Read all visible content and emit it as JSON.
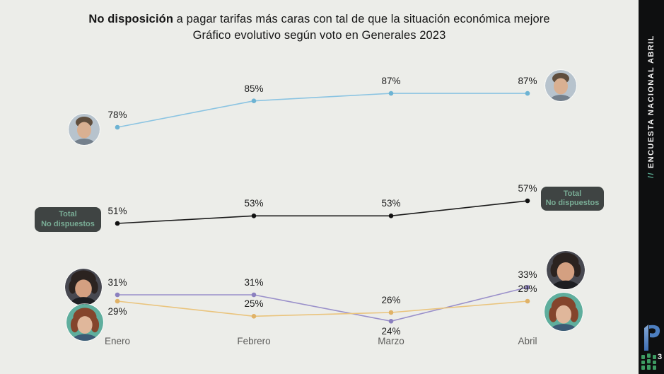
{
  "title": {
    "bold": "No disposición",
    "rest": " a pagar tarifas más caras con tal de que la situación económica mejore",
    "line2": "Gráfico evolutivo según voto en Generales 2023"
  },
  "badges": {
    "bg": "#3f4443",
    "text_color": "#79ac95",
    "left": {
      "line1": "Total",
      "line2": "No dispuestos"
    },
    "right": {
      "line1": "Total",
      "line2": "No dispuestos"
    }
  },
  "avatars": [
    {
      "name": "massa-avatar-left"
    },
    {
      "name": "massa-avatar-right"
    },
    {
      "name": "milei-avatar-left"
    },
    {
      "name": "bullrich-avatar-left"
    },
    {
      "name": "milei-avatar-right"
    },
    {
      "name": "bullrich-avatar-right"
    }
  ],
  "sidebar": {
    "slashes": "//",
    "label": "ENCUESTA NACIONAL ABRIL",
    "bg": "#0e0f10",
    "accent": "#58a88f",
    "logo_superscript": "3",
    "logo_blue": "#4d7fc0",
    "logo_green": "#3d9b62"
  },
  "chart_data": {
    "type": "line",
    "title": "No disposición a pagar tarifas más caras con tal de que la situación económica mejore",
    "subtitle": "Gráfico evolutivo según voto en Generales 2023",
    "categories": [
      "Enero",
      "Febrero",
      "Marzo",
      "Abril"
    ],
    "unit": "%",
    "ylim": [
      0,
      100
    ],
    "grid": false,
    "legend_position": "avatar photos at line endpoints",
    "series": [
      {
        "name": "Votantes Massa",
        "values": [
          78,
          85,
          87,
          87
        ],
        "color": "#8bc4e2",
        "dot_color": "#6db3d3",
        "label_pos": [
          "above",
          "above",
          "above",
          "above"
        ]
      },
      {
        "name": "Total No dispuestos",
        "values": [
          51,
          53,
          53,
          57
        ],
        "color": "#1b1b1b",
        "dot_color": "#111111",
        "label_pos": [
          "above",
          "above",
          "above",
          "above"
        ]
      },
      {
        "name": "Votantes Milei",
        "values": [
          31,
          31,
          24,
          33
        ],
        "color": "#9a90ca",
        "dot_color": "#8b80bf",
        "label_pos": [
          "above",
          "above",
          "below",
          "above"
        ]
      },
      {
        "name": "Votantes Bullrich",
        "values": [
          29,
          25,
          26,
          29
        ],
        "color": "#eac47d",
        "dot_color": "#e0b267",
        "label_pos": [
          "below",
          "above",
          "above",
          "above"
        ]
      }
    ]
  }
}
